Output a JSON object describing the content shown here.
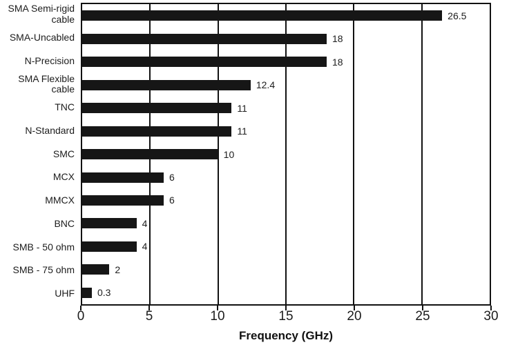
{
  "figure": {
    "background": "#ffffff",
    "border_color": "#111111",
    "bar_color": "#161616",
    "text_color": "#1c1c1c"
  },
  "chart_data": {
    "type": "bar",
    "orientation": "horizontal",
    "title": "",
    "xlabel": "Frequency (GHz)",
    "ylabel": "",
    "xlim": [
      0,
      30
    ],
    "xticks": [
      0,
      5,
      10,
      15,
      20,
      25,
      30
    ],
    "grid": "vertical gridlines at each x tick, full plot border box",
    "legend": "none",
    "categories": [
      "SMA Semi-rigid\ncable",
      "SMA-Uncabled",
      "N-Precision",
      "SMA Flexible\ncable",
      "TNC",
      "N-Standard",
      "SMC",
      "MCX",
      "MMCX",
      "BNC",
      "SMB - 50 ohm",
      "SMB - 75 ohm",
      "UHF"
    ],
    "values": [
      26.5,
      18,
      18,
      12.4,
      11,
      11,
      10,
      6,
      6,
      4,
      4,
      2,
      0.3
    ],
    "value_labels": [
      "26.5",
      "18",
      "18",
      "12.4",
      "11",
      "11",
      "10",
      "6",
      "6",
      "4",
      "4",
      "2",
      "0.3"
    ]
  }
}
